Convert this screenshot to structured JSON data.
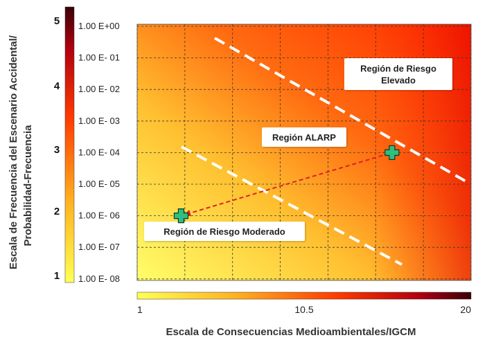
{
  "chart_data": {
    "type": "scatter",
    "title": "",
    "xlabel": "Escala de Consecuencias Medioambientales/IGCM",
    "ylabel_line1": "Escala de Frecuencia del Escenario Accidental/",
    "ylabel_line2": "Probabilidad-Frecuencia",
    "x_scale": {
      "min": 1,
      "max": 20,
      "ticks": [
        "1",
        "10.5",
        "20"
      ]
    },
    "frequency_labels": [
      "1.00 E+00",
      "1.00 E- 01",
      "1.00 E- 02",
      "1.00 E- 03",
      "1.00 E- 04",
      "1.00 E- 05",
      "1.00 E- 06",
      "1.00 E- 07",
      "1.00 E- 08"
    ],
    "frequency_values": [
      1,
      0.1,
      0.01,
      0.001,
      0.0001,
      1e-05,
      1e-06,
      1e-07,
      1e-08
    ],
    "probability_levels": [
      "5",
      "4",
      "3",
      "2",
      "1"
    ],
    "points": [
      {
        "x": 15.5,
        "y": 0.0001
      },
      {
        "x": 3.5,
        "y": 1e-06
      }
    ],
    "arrow": {
      "from": 0,
      "to": 1
    },
    "regions": [
      {
        "lines": [
          "Región de Riesgo",
          "Elevado"
        ]
      },
      {
        "lines": [
          "Región ALARP"
        ]
      },
      {
        "lines": [
          "Región de Riesgo Moderado"
        ]
      }
    ],
    "grid": true,
    "colors": {
      "low": "#ffff66",
      "mid": "#ff8a1a",
      "high": "#ff2a00",
      "dark": "#4a0008",
      "marker": "#2fbf80",
      "boundary": "#ffffff",
      "arrow": "#e02020"
    }
  }
}
